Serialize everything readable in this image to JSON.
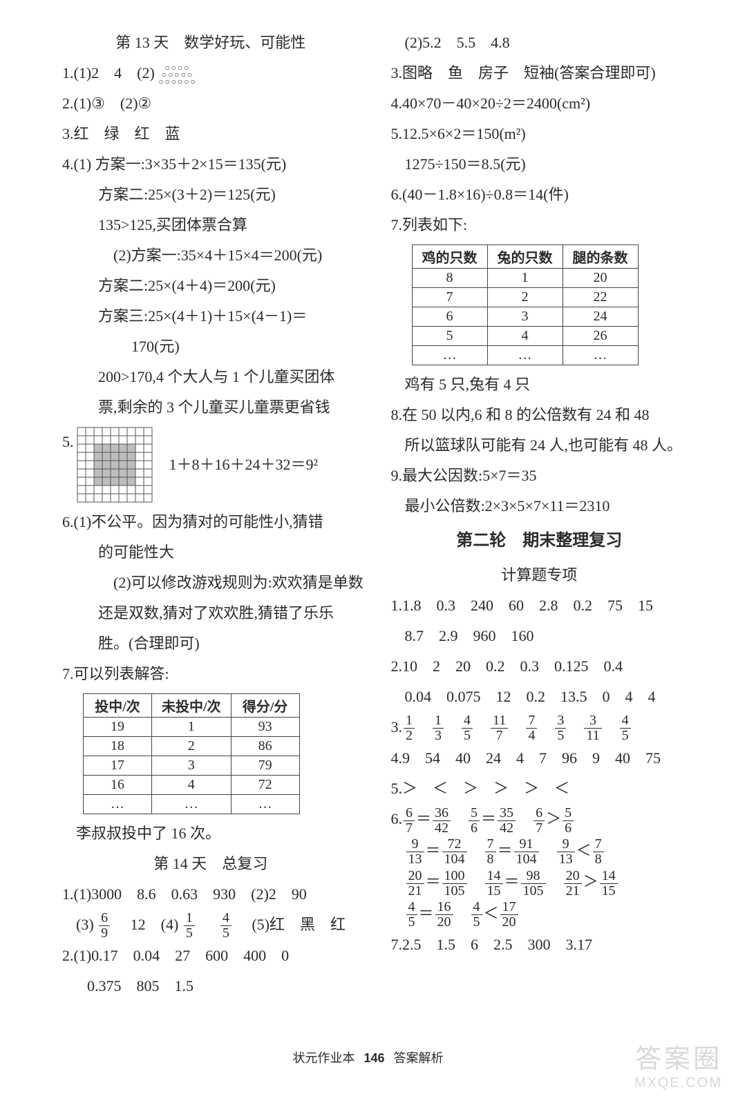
{
  "left": {
    "title_day13": "第 13 天　数学好玩、可能性",
    "q1_a": "1.(1)2　4　(2) ",
    "circles": {
      "rows": [
        "○○○○",
        "○○○○○",
        "○○○○○○"
      ]
    },
    "q2": "2.(1)③　(2)②",
    "q3": "3.红　绿　红　蓝",
    "q4_1a": "4.(1) 方案一:3×35＋2×15＝135(元)",
    "q4_1b": "方案二:25×(3＋2)＝125(元)",
    "q4_1c": "135>125,买团体票合算",
    "q4_2a": "(2)方案一:35×4＋15×4＝200(元)",
    "q4_2b": "方案二:25×(4＋4)＝200(元)",
    "q4_2c": "方案三:25×(4＋1)＋15×(4－1)＝",
    "q4_2d": "170(元)",
    "q4_2e": "200>170,4 个大人与 1 个儿童买团体",
    "q4_2f": "票,剩余的 3 个儿童买儿童票更省钱",
    "q5_label": "5.",
    "q5_expr": "1＋8＋16＋24＋32＝9²",
    "q5_grid": {
      "size": 9,
      "cell": 12,
      "stroke": "#555555",
      "shade": "#bdbdbd",
      "shaded_cells": [
        [
          4,
          4
        ],
        [
          3,
          3
        ],
        [
          3,
          4
        ],
        [
          3,
          5
        ],
        [
          4,
          3
        ],
        [
          4,
          5
        ],
        [
          5,
          3
        ],
        [
          5,
          4
        ],
        [
          5,
          5
        ],
        [
          2,
          2
        ],
        [
          2,
          3
        ],
        [
          2,
          4
        ],
        [
          2,
          5
        ],
        [
          2,
          6
        ],
        [
          3,
          2
        ],
        [
          3,
          6
        ],
        [
          4,
          2
        ],
        [
          4,
          6
        ],
        [
          5,
          2
        ],
        [
          5,
          6
        ],
        [
          6,
          2
        ],
        [
          6,
          3
        ],
        [
          6,
          4
        ],
        [
          6,
          5
        ],
        [
          6,
          6
        ]
      ]
    },
    "q6_1a": "6.(1)不公平。因为猜对的可能性小,猜错",
    "q6_1b": "的可能性大",
    "q6_2a": "(2)可以修改游戏规则为:欢欢猜是单数",
    "q6_2b": "还是双数,猜对了欢欢胜,猜错了乐乐",
    "q6_2c": "胜。(合理即可)",
    "q7_head": "7.可以列表解答:",
    "table7": {
      "headers": [
        "投中/次",
        "未投中/次",
        "得分/分"
      ],
      "rows": [
        [
          "19",
          "1",
          "93"
        ],
        [
          "18",
          "2",
          "86"
        ],
        [
          "17",
          "3",
          "79"
        ],
        [
          "16",
          "4",
          "72"
        ],
        [
          "…",
          "…",
          "…"
        ]
      ]
    },
    "q7_ans": "李叔叔投中了 16 次。",
    "title_day14": "第 14 天　总复习",
    "d14_1a": "1.(1)3000　8.6　0.63　930　(2)2　90",
    "d14_1b_pre": "(3)",
    "d14_1b_fr": {
      "n": "6",
      "d": "9"
    },
    "d14_1b_mid": "　12　(4)",
    "d14_1b_fr2": {
      "n": "1",
      "d": "5"
    },
    "d14_1b_fr3": {
      "n": "4",
      "d": "5"
    },
    "d14_1b_suf": "　(5)红　黑　红",
    "d14_2a": "2.(1)0.17　0.04　27　600　400　0",
    "d14_2b": "0.375　805　1.5"
  },
  "right": {
    "r1": "(2)5.2　5.5　4.8",
    "r3": "3.图略　鱼　房子　短袖(答案合理即可)",
    "r4": "4.40×70－40×20÷2＝2400(cm²)",
    "r5a": "5.12.5×6×2＝150(m²)",
    "r5b": "1275÷150＝8.5(元)",
    "r6": "6.(40－1.8×16)÷0.8＝14(件)",
    "r7_head": "7.列表如下:",
    "table_r7": {
      "headers": [
        "鸡的只数",
        "兔的只数",
        "腿的条数"
      ],
      "rows": [
        [
          "8",
          "1",
          "20"
        ],
        [
          "7",
          "2",
          "22"
        ],
        [
          "6",
          "3",
          "24"
        ],
        [
          "5",
          "4",
          "26"
        ],
        [
          "…",
          "…",
          "…"
        ]
      ]
    },
    "r7_ans": "鸡有 5 只,兔有 4 只",
    "r8a": "8.在 50 以内,6 和 8 的公倍数有 24 和 48",
    "r8b": "所以篮球队可能有 24 人,也可能有 48 人。",
    "r9a": "9.最大公因数:5×7＝35",
    "r9b": "最小公倍数:2×3×5×7×11＝2310",
    "round2_title": "第二轮　期末整理复习",
    "round2_sub": "计算题专项",
    "c1a": "1.1.8　0.3　240　60　2.8　0.2　75　15",
    "c1b": "8.7　2.9　960　160",
    "c2a": "2.10　2　20　0.2　0.3　0.125　0.4",
    "c2b": "0.04　0.075　12　0.2　13.5　0　4　4",
    "c3_pre": "3.",
    "c3_fracs": [
      {
        "n": "1",
        "d": "2"
      },
      {
        "n": "1",
        "d": "3"
      },
      {
        "n": "4",
        "d": "5"
      },
      {
        "n": "11",
        "d": "7"
      },
      {
        "n": "7",
        "d": "4"
      },
      {
        "n": "3",
        "d": "5"
      },
      {
        "n": "3",
        "d": "11"
      },
      {
        "n": "4",
        "d": "5"
      }
    ],
    "c4": "4.9　54　40　24　4　7　96　9　40　75",
    "c5": "5.＞　＜　＞　＞　＞　＜",
    "c6_pre": "6.",
    "c6_line1": [
      {
        "type": "fr",
        "n": "6",
        "d": "7"
      },
      {
        "type": "t",
        "v": "＝"
      },
      {
        "type": "fr",
        "n": "36",
        "d": "42"
      },
      {
        "type": "sp"
      },
      {
        "type": "fr",
        "n": "5",
        "d": "6"
      },
      {
        "type": "t",
        "v": "＝"
      },
      {
        "type": "fr",
        "n": "35",
        "d": "42"
      },
      {
        "type": "sp"
      },
      {
        "type": "fr",
        "n": "6",
        "d": "7"
      },
      {
        "type": "t",
        "v": "＞"
      },
      {
        "type": "fr",
        "n": "5",
        "d": "6"
      }
    ],
    "c6_line2": [
      {
        "type": "fr",
        "n": "9",
        "d": "13"
      },
      {
        "type": "t",
        "v": "＝"
      },
      {
        "type": "fr",
        "n": "72",
        "d": "104"
      },
      {
        "type": "sp"
      },
      {
        "type": "fr",
        "n": "7",
        "d": "8"
      },
      {
        "type": "t",
        "v": "＝"
      },
      {
        "type": "fr",
        "n": "91",
        "d": "104"
      },
      {
        "type": "sp"
      },
      {
        "type": "fr",
        "n": "9",
        "d": "13"
      },
      {
        "type": "t",
        "v": "＜"
      },
      {
        "type": "fr",
        "n": "7",
        "d": "8"
      }
    ],
    "c6_line3": [
      {
        "type": "fr",
        "n": "20",
        "d": "21"
      },
      {
        "type": "t",
        "v": "＝"
      },
      {
        "type": "fr",
        "n": "100",
        "d": "105"
      },
      {
        "type": "sp"
      },
      {
        "type": "fr",
        "n": "14",
        "d": "15"
      },
      {
        "type": "t",
        "v": "＝"
      },
      {
        "type": "fr",
        "n": "98",
        "d": "105"
      },
      {
        "type": "sp"
      },
      {
        "type": "fr",
        "n": "20",
        "d": "21"
      },
      {
        "type": "t",
        "v": "＞"
      },
      {
        "type": "fr",
        "n": "14",
        "d": "15"
      }
    ],
    "c6_line4": [
      {
        "type": "fr",
        "n": "4",
        "d": "5"
      },
      {
        "type": "t",
        "v": "＝"
      },
      {
        "type": "fr",
        "n": "16",
        "d": "20"
      },
      {
        "type": "sp"
      },
      {
        "type": "fr",
        "n": "4",
        "d": "5"
      },
      {
        "type": "t",
        "v": "＜"
      },
      {
        "type": "fr",
        "n": "17",
        "d": "20"
      }
    ],
    "c7": "7.2.5　1.5　6　2.5　300　3.17"
  },
  "footer": {
    "left": "状元作业本",
    "page": "146",
    "right": "答案解析"
  },
  "watermark": {
    "line1": "答案圈",
    "line2": "MXQE.COM"
  }
}
